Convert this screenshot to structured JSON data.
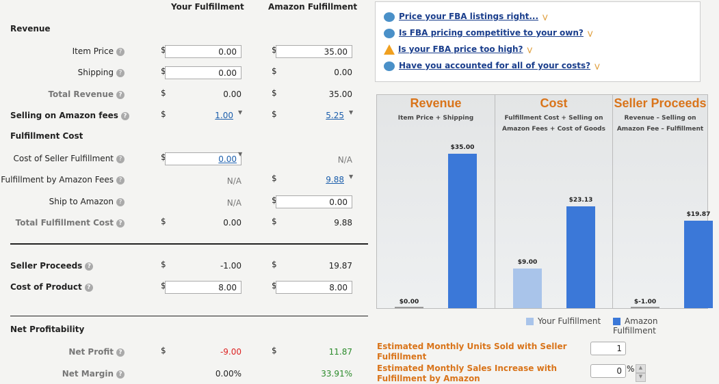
{
  "headers": {
    "your": "Your Fulfillment",
    "amazon": "Amazon Fulfillment"
  },
  "sections": {
    "revenue": "Revenue",
    "fulfillment_cost": "Fulfillment Cost",
    "net_profitability": "Net Profitability"
  },
  "rows": {
    "item_price": {
      "label": "Item Price",
      "your": "0.00",
      "amazon": "35.00"
    },
    "shipping": {
      "label": "Shipping",
      "your": "0.00",
      "amazon": "0.00"
    },
    "total_revenue": {
      "label": "Total Revenue",
      "your": "0.00",
      "amazon": "35.00"
    },
    "selling_fees": {
      "label": "Selling on Amazon fees",
      "your": "1.00",
      "amazon": "5.25"
    },
    "seller_fulfillment": {
      "label": "Cost of Seller Fulfillment",
      "your": "0.00",
      "amazon": "N/A"
    },
    "fba_fees": {
      "label": "Fulfillment by Amazon Fees",
      "your": "N/A",
      "amazon": "9.88"
    },
    "ship_to_amazon": {
      "label": "Ship to Amazon",
      "your": "N/A",
      "amazon": "0.00"
    },
    "total_fulfillment": {
      "label": "Total Fulfillment Cost",
      "your": "0.00",
      "amazon": "9.88"
    },
    "seller_proceeds": {
      "label": "Seller Proceeds",
      "your": "-1.00",
      "amazon": "19.87"
    },
    "cost_of_product": {
      "label": "Cost of Product",
      "your": "8.00",
      "amazon": "8.00"
    },
    "net_profit": {
      "label": "Net Profit",
      "your": "-9.00",
      "amazon": "11.87"
    },
    "net_margin": {
      "label": "Net Margin",
      "your": "0.00%",
      "amazon": "33.91%"
    }
  },
  "currency": "$",
  "tips": [
    "Price your FBA listings right...",
    "Is FBA pricing competitive to your own?",
    "Is your FBA price too high?",
    "Have you accounted for all of your costs?"
  ],
  "chart_data": {
    "type": "bar",
    "categories": [
      "Revenue",
      "Cost",
      "Seller Proceeds"
    ],
    "subtitles": [
      "Item Price + Shipping",
      "Fulfillment Cost + Selling on Amazon Fees + Cost of Goods",
      "Revenue – Selling on Amazon Fee – Fulfillment"
    ],
    "series": [
      {
        "name": "Your Fulfillment",
        "values": [
          0,
          9,
          -1
        ],
        "labels": [
          "$0.00",
          "$9.00",
          "$-1.00"
        ],
        "color": "#a9c4ea"
      },
      {
        "name": "Amazon Fulfillment",
        "values": [
          35,
          23.13,
          19.87
        ],
        "labels": [
          "$35.00",
          "$23.13",
          "$19.87"
        ],
        "color": "#3b78d8"
      }
    ],
    "ylim": [
      0,
      35
    ],
    "legend": "bottom-right"
  },
  "estimates": {
    "units_label": "Estimated Monthly Units Sold with Seller Fulfillment",
    "units_value": "1",
    "increase_label": "Estimated Monthly Sales Increase with Fulfillment by Amazon",
    "increase_value": "0",
    "percent": "%"
  }
}
